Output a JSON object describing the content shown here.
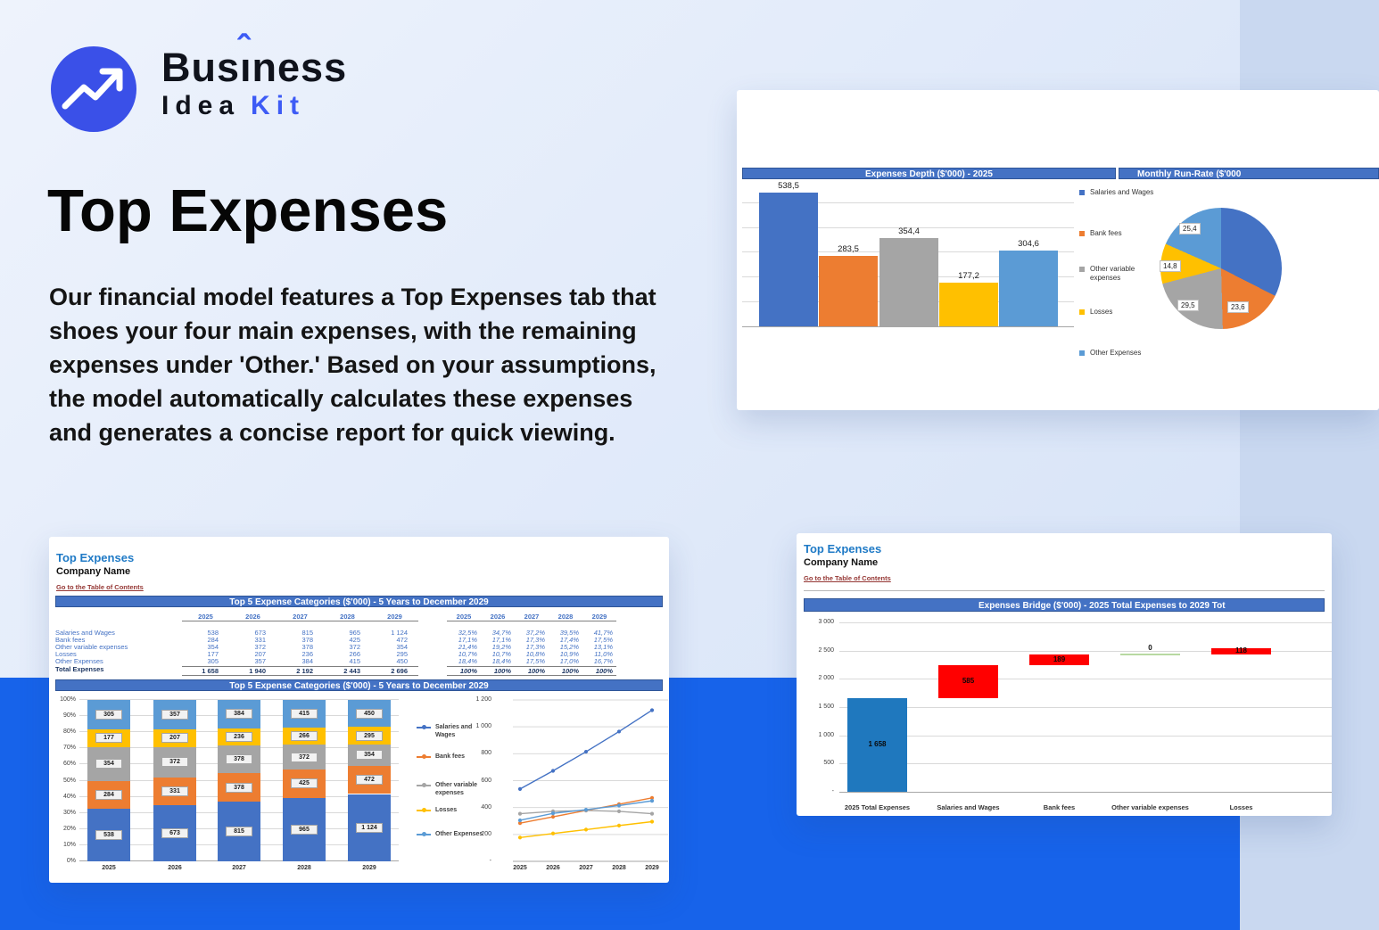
{
  "logo": {
    "part1": "Bus",
    "accent_base": "ı",
    "accent": "ˆ",
    "part2": "ness",
    "line2_black": "Idea",
    "line2_blue": "Kit"
  },
  "hero": {
    "title": "Top Expenses",
    "paragraph": "Our financial model features a Top Expenses tab that shoes your four main expenses, with the remaining expenses under 'Other.' Based on your assumptions, the model automatically calculates these expenses and generates a concise report for quick viewing."
  },
  "sheet": {
    "title": "Top Expenses",
    "company": "Company Name",
    "link": "Go to the Table of Contents"
  },
  "palette": {
    "series_colors": [
      "#4472C4",
      "#ED7D31",
      "#A5A5A5",
      "#FFC000",
      "#5B9BD5"
    ],
    "header_blue": "#4472C4",
    "band_blue": "#1763EA",
    "logo_blue": "#3A50E8",
    "kit_blue": "#3D5BF5",
    "sheet_title_blue": "#1F7AC6",
    "link_red": "#953734",
    "bridge_blue": "#1F78BE",
    "bridge_red": "#FF0000",
    "bridge_zero_green": "#B8D9A2",
    "total_navy": "#1F3864"
  },
  "chart_data": [
    {
      "id": "expenses_depth",
      "type": "bar",
      "title": "Expenses Depth ($'000) - 2025",
      "categories": [
        "Salaries and Wages",
        "Bank fees",
        "Other variable expenses",
        "Losses",
        "Other Expenses"
      ],
      "values": [
        538.5,
        283.5,
        354.4,
        177.2,
        304.6
      ],
      "value_labels": [
        "538,5",
        "283,5",
        "354,4",
        "177,2",
        "304,6"
      ],
      "ylim": [
        0,
        580
      ],
      "gridline_step": 100,
      "grid": true,
      "legend_position": "right"
    },
    {
      "id": "monthly_run_rate",
      "type": "pie",
      "title": "Monthly Run-Rate ($'000",
      "slices": [
        {
          "name": "Salaries and Wages",
          "value": 44.9,
          "label": "44,9",
          "label_visible": false
        },
        {
          "name": "Bank fees",
          "value": 23.6,
          "label": "23,6",
          "label_visible": true
        },
        {
          "name": "Other variable expenses",
          "value": 29.5,
          "label": "29,5",
          "label_visible": true
        },
        {
          "name": "Losses",
          "value": 14.8,
          "label": "14,8",
          "label_visible": true
        },
        {
          "name": "Other Expenses",
          "value": 25.4,
          "label": "25,4",
          "label_visible": true
        }
      ]
    },
    {
      "id": "top5_table",
      "type": "table",
      "title": "Top 5 Expense Categories ($'000) - 5 Years to December 2029",
      "years": [
        "2025",
        "2026",
        "2027",
        "2028",
        "2029"
      ],
      "rows": [
        {
          "label": "Salaries and Wages",
          "values": [
            "538",
            "673",
            "815",
            "965",
            "1 124"
          ],
          "pct": [
            "32,5%",
            "34,7%",
            "37,2%",
            "39,5%",
            "41,7%"
          ]
        },
        {
          "label": "Bank fees",
          "values": [
            "284",
            "331",
            "378",
            "425",
            "472"
          ],
          "pct": [
            "17,1%",
            "17,1%",
            "17,3%",
            "17,4%",
            "17,5%"
          ]
        },
        {
          "label": "Other variable expenses",
          "values": [
            "354",
            "372",
            "378",
            "372",
            "354"
          ],
          "pct": [
            "21,4%",
            "19,2%",
            "17,3%",
            "15,2%",
            "13,1%"
          ]
        },
        {
          "label": "Losses",
          "values": [
            "177",
            "207",
            "236",
            "266",
            "295"
          ],
          "pct": [
            "10,7%",
            "10,7%",
            "10,8%",
            "10,9%",
            "11,0%"
          ]
        },
        {
          "label": "Other Expenses",
          "values": [
            "305",
            "357",
            "384",
            "415",
            "450"
          ],
          "pct": [
            "18,4%",
            "18,4%",
            "17,5%",
            "17,0%",
            "16,7%"
          ]
        }
      ],
      "total": {
        "label": "Total Expenses",
        "values": [
          "1 658",
          "1 940",
          "2 192",
          "2 443",
          "2 696"
        ],
        "pct": [
          "100%",
          "100%",
          "100%",
          "100%",
          "100%"
        ]
      }
    },
    {
      "id": "top5_stacked",
      "type": "bar",
      "stacked": true,
      "title": "Top 5 Expense Categories ($'000) - 5 Years to December 2029",
      "categories": [
        "2025",
        "2026",
        "2027",
        "2028",
        "2029"
      ],
      "series": [
        {
          "name": "Salaries and Wages",
          "values": [
            538,
            673,
            815,
            965,
            1124
          ],
          "labels": [
            "538",
            "673",
            "815",
            "965",
            "1 124"
          ]
        },
        {
          "name": "Bank fees",
          "values": [
            284,
            331,
            378,
            425,
            472
          ],
          "labels": [
            "284",
            "331",
            "378",
            "425",
            "472"
          ]
        },
        {
          "name": "Other variable expenses",
          "values": [
            354,
            372,
            378,
            372,
            354
          ],
          "labels": [
            "354",
            "372",
            "378",
            "372",
            "354"
          ]
        },
        {
          "name": "Losses",
          "values": [
            177,
            207,
            236,
            266,
            295
          ],
          "labels": [
            "177",
            "207",
            "236",
            "266",
            "295"
          ]
        },
        {
          "name": "Other Expenses",
          "values": [
            305,
            357,
            384,
            415,
            450
          ],
          "labels": [
            "305",
            "357",
            "384",
            "415",
            "450"
          ]
        }
      ],
      "yticks": [
        "0%",
        "10%",
        "20%",
        "30%",
        "40%",
        "50%",
        "60%",
        "70%",
        "80%",
        "90%",
        "100%"
      ],
      "legend": [
        "Salaries and Wages",
        "Bank fees",
        "Other variable expenses",
        "Losses",
        "Other Expenses"
      ]
    },
    {
      "id": "top5_lines",
      "type": "line",
      "x": [
        "2025",
        "2026",
        "2027",
        "2028",
        "2029"
      ],
      "series": [
        {
          "name": "Salaries and Wages",
          "values": [
            538,
            673,
            815,
            965,
            1124
          ]
        },
        {
          "name": "Bank fees",
          "values": [
            284,
            331,
            378,
            425,
            472
          ]
        },
        {
          "name": "Other variable expenses",
          "values": [
            354,
            372,
            378,
            372,
            354
          ]
        },
        {
          "name": "Losses",
          "values": [
            177,
            207,
            236,
            266,
            295
          ]
        },
        {
          "name": "Other Expenses",
          "values": [
            305,
            357,
            384,
            415,
            450
          ]
        }
      ],
      "ylim": [
        0,
        1200
      ],
      "yticks": [
        {
          "v": 0,
          "t": "-"
        },
        {
          "v": 200,
          "t": "200"
        },
        {
          "v": 400,
          "t": "400"
        },
        {
          "v": 600,
          "t": "600"
        },
        {
          "v": 800,
          "t": "800"
        },
        {
          "v": 1000,
          "t": "1 000"
        },
        {
          "v": 1200,
          "t": "1 200"
        }
      ]
    },
    {
      "id": "expenses_bridge",
      "type": "waterfall",
      "title": "Expenses Bridge ($'000) - 2025 Total Expenses to 2029 Tot",
      "categories": [
        "2025 Total Expenses",
        "Salaries and Wages",
        "Bank fees",
        "Other variable expenses",
        "Losses"
      ],
      "bars": [
        {
          "kind": "base",
          "start": 0,
          "end": 1658,
          "label": "1 658"
        },
        {
          "kind": "delta",
          "start": 1658,
          "end": 2243,
          "label": "585"
        },
        {
          "kind": "delta",
          "start": 2243,
          "end": 2432,
          "label": "189"
        },
        {
          "kind": "zero",
          "start": 2432,
          "end": 2432,
          "label": "0"
        },
        {
          "kind": "delta",
          "start": 2432,
          "end": 2550,
          "label": "118"
        }
      ],
      "ylim": [
        0,
        3000
      ],
      "yticks": [
        {
          "v": 3000,
          "t": "3 000"
        },
        {
          "v": 2500,
          "t": "2 500"
        },
        {
          "v": 2000,
          "t": "2 000"
        },
        {
          "v": 1500,
          "t": "1 500"
        },
        {
          "v": 1000,
          "t": "1 000"
        },
        {
          "v": 500,
          "t": "500"
        },
        {
          "v": 0,
          "t": "-"
        }
      ]
    }
  ]
}
